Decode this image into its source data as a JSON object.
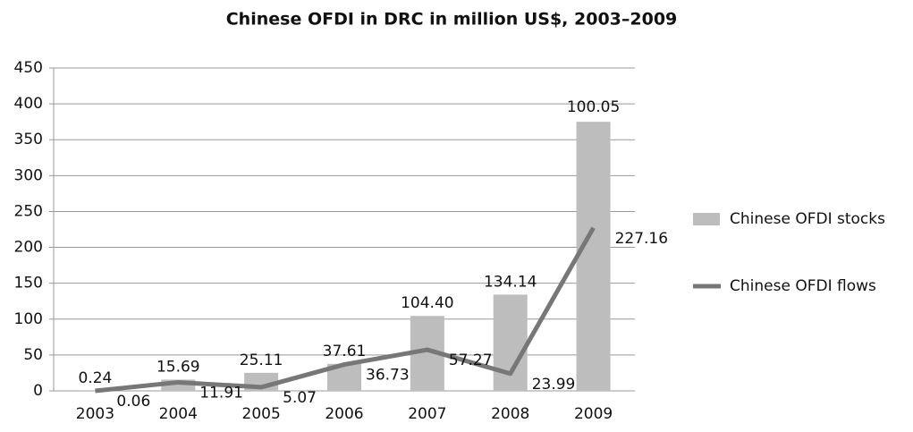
{
  "chart_data": {
    "type": "bar_line",
    "title": "Chinese OFDI in DRC in million US$, 2003–2009",
    "categories": [
      "2003",
      "2004",
      "2005",
      "2006",
      "2007",
      "2008",
      "2009"
    ],
    "series": [
      {
        "name": "Chinese OFDI stocks",
        "type": "bar",
        "color": "#bdbdbd",
        "values": [
          0.24,
          15.69,
          25.11,
          37.61,
          104.4,
          134.14,
          375
        ],
        "value_labels": [
          "0.24",
          "15.69",
          "25.11",
          "37.61",
          "104.40",
          "134.14",
          null
        ]
      },
      {
        "name": "Chinese OFDI flows",
        "type": "line",
        "color": "#777777",
        "values": [
          0.06,
          11.91,
          5.07,
          36.73,
          57.27,
          23.99,
          227.16
        ],
        "value_labels": [
          "0.06",
          "11.91",
          "5.07",
          "36.73",
          "57.27",
          "23.99",
          "227.16"
        ]
      }
    ],
    "annotations": [
      "100.05"
    ],
    "ylim": [
      0,
      450
    ],
    "yticks": [
      0,
      50,
      100,
      150,
      200,
      250,
      300,
      350,
      400,
      450
    ],
    "grid": true,
    "legend": "right"
  }
}
